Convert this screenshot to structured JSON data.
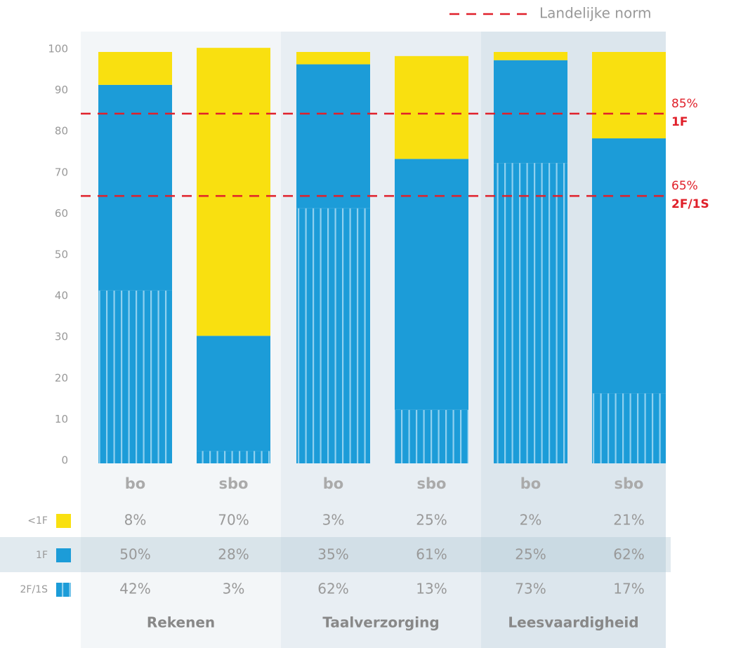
{
  "chart_data": {
    "type": "stacked_bar",
    "groups": [
      {
        "name": "Rekenen",
        "categories": [
          "bo",
          "sbo"
        ]
      },
      {
        "name": "Taalverzorging",
        "categories": [
          "bo",
          "sbo"
        ]
      },
      {
        "name": "Leesvaardigheid",
        "categories": [
          "bo",
          "sbo"
        ]
      }
    ],
    "series": [
      {
        "name": "<1F",
        "color": "#f9e010",
        "values": [
          8,
          70,
          3,
          25,
          2,
          21
        ],
        "value_labels": [
          "8%",
          "70%",
          "3%",
          "25%",
          "2%",
          "21%"
        ]
      },
      {
        "name": "1F",
        "color": "#1c9cd8",
        "values": [
          50,
          28,
          35,
          61,
          25,
          62
        ],
        "value_labels": [
          "50%",
          "28%",
          "35%",
          "61%",
          "25%",
          "62%"
        ]
      },
      {
        "name": "2F/1S",
        "color": "#1c9cd8",
        "pattern": "stripes",
        "values": [
          42,
          3,
          62,
          13,
          73,
          17
        ],
        "value_labels": [
          "42%",
          "3%",
          "62%",
          "13%",
          "73%",
          "17%"
        ]
      }
    ],
    "ylim": [
      0,
      100
    ],
    "yticks": [
      0,
      10,
      20,
      30,
      40,
      50,
      60,
      70,
      80,
      90,
      100
    ],
    "reference_legend": "Landelijke norm",
    "reference_color": "#e0202a",
    "reference_lines": [
      {
        "value": 85,
        "label": "85%",
        "level": "1F"
      },
      {
        "value": 65,
        "label": "65%",
        "level": "2F/1S"
      }
    ]
  }
}
